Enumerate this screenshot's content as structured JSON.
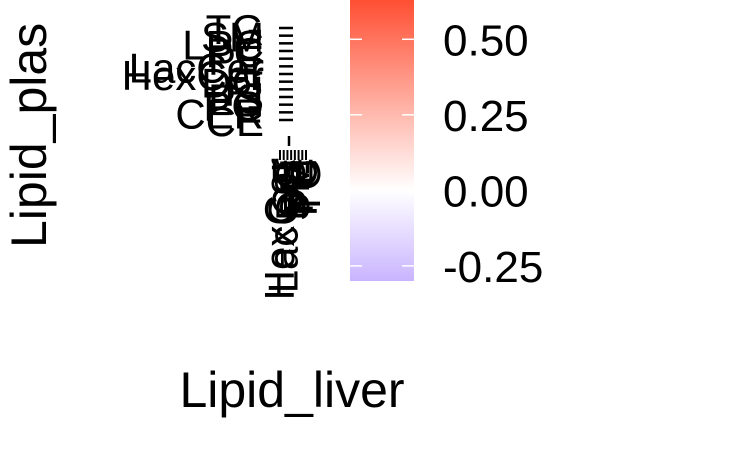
{
  "chart_data": {
    "type": "heatmap",
    "xlabel": "Lipid_liver",
    "ylabel": "Lipid_plas",
    "x_tick_labels": [
      "HexCer",
      "LacCer",
      "CE",
      "DG",
      "SM",
      "PE",
      "PC",
      "TG"
    ],
    "y_tick_labels": [
      "TG",
      "SM",
      "LPC",
      "PC",
      "PE",
      "LacCer",
      "HexCer",
      "DG",
      "PI",
      "PS",
      "PG",
      "CER",
      "CE"
    ],
    "values": [],
    "colorbar": {
      "min": -0.3,
      "max": 0.63,
      "ticks": [
        {
          "value": 0.5,
          "label": "0.50"
        },
        {
          "value": 0.25,
          "label": "0.25"
        },
        {
          "value": 0.0,
          "label": "0.00"
        },
        {
          "value": -0.25,
          "label": "-0.25"
        }
      ],
      "colors": {
        "low": "#c9b4ff",
        "mid": "#ffffff",
        "high": "#ff4f33"
      }
    }
  }
}
